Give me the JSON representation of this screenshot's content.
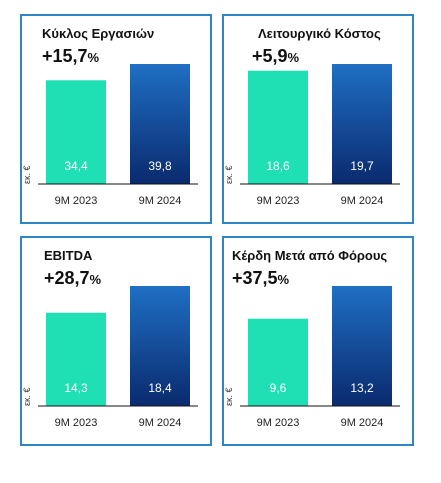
{
  "chart_data": [
    {
      "type": "bar",
      "title": "Κύκλος Εργασιών",
      "change": "+15,7",
      "change_unit": "%",
      "ylabel": "εκ. €",
      "categories": [
        "9M 2023",
        "9M 2024"
      ],
      "values": [
        34.4,
        39.8
      ],
      "value_labels": [
        "34,4",
        "39,8"
      ],
      "colors": [
        "#1fe0b4",
        "#0a2a6e"
      ]
    },
    {
      "type": "bar",
      "title": "Λειτουργικό Κόστος",
      "change": "+5,9",
      "change_unit": "%",
      "ylabel": "εκ. €",
      "categories": [
        "9M 2023",
        "9M 2024"
      ],
      "values": [
        18.6,
        19.7
      ],
      "value_labels": [
        "18,6",
        "19,7"
      ],
      "colors": [
        "#1fe0b4",
        "#0a2a6e"
      ]
    },
    {
      "type": "bar",
      "title": "EBITDA",
      "change": "+28,7",
      "change_unit": "%",
      "ylabel": "εκ. €",
      "categories": [
        "9M 2023",
        "9M 2024"
      ],
      "values": [
        14.3,
        18.4
      ],
      "value_labels": [
        "14,3",
        "18,4"
      ],
      "colors": [
        "#1fe0b4",
        "#0a2a6e"
      ]
    },
    {
      "type": "bar",
      "title": "Κέρδη Μετά από Φόρους",
      "change": "+37,5",
      "change_unit": "%",
      "ylabel": "εκ. €",
      "categories": [
        "9M 2023",
        "9M 2024"
      ],
      "values": [
        9.6,
        13.2
      ],
      "value_labels": [
        "9,6",
        "13,2"
      ],
      "colors": [
        "#1fe0b4",
        "#0a2a6e"
      ]
    }
  ]
}
